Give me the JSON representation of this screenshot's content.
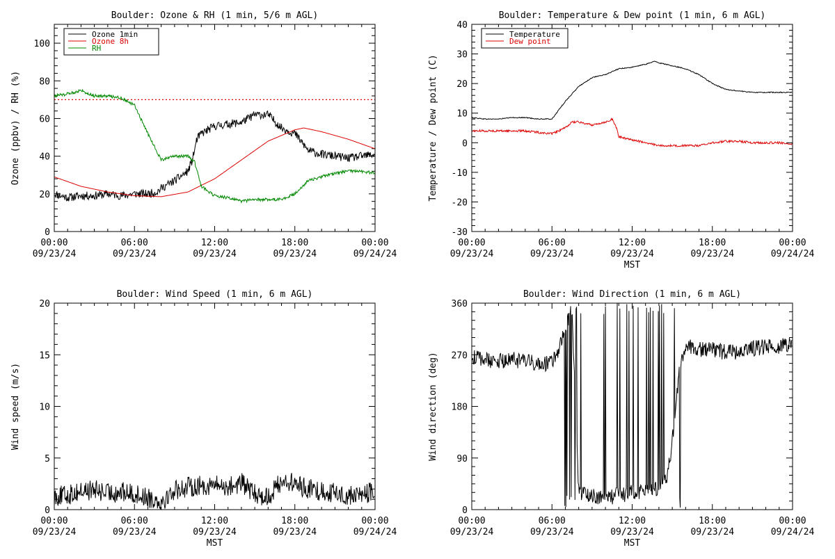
{
  "figure": {
    "background": "#ffffff"
  },
  "chart_data": [
    {
      "type": "line",
      "title": "Boulder: Ozone & RH (1 min, 5/6 m AGL)",
      "xlabel": "",
      "ylabel": "Ozone (ppbv) / RH (%)",
      "xlim": [
        "09/23/24 00:00",
        "09/24/24 00:00"
      ],
      "ylim": [
        0,
        110
      ],
      "x_ticks": [
        {
          "time": "00:00",
          "date": "09/23/24"
        },
        {
          "time": "06:00",
          "date": "09/23/24"
        },
        {
          "time": "12:00",
          "date": "09/23/24"
        },
        {
          "time": "18:00",
          "date": "09/23/24"
        },
        {
          "time": "00:00",
          "date": "09/24/24"
        }
      ],
      "y_ticks": [
        0,
        20,
        40,
        60,
        80,
        100
      ],
      "legend": {
        "position": "top-left",
        "entries": [
          "Ozone 1min",
          "Ozone 8h",
          "RH"
        ]
      },
      "reference_line": {
        "y": 70,
        "color": "#dd0000",
        "style": "dotted"
      },
      "series": [
        {
          "name": "Ozone 1min",
          "color": "#000000",
          "noise": 2.2,
          "x": [
            "00:00",
            "01:00",
            "02:00",
            "03:00",
            "04:00",
            "05:00",
            "06:00",
            "07:00",
            "07:40",
            "08:00",
            "09:00",
            "10:00",
            "10:20",
            "10:40",
            "11:00",
            "12:00",
            "13:00",
            "14:00",
            "15:00",
            "16:00",
            "17:00",
            "18:00",
            "19:00",
            "20:00",
            "21:00",
            "22:00",
            "23:00",
            "23:59"
          ],
          "y": [
            20,
            18,
            19,
            19,
            20,
            19,
            20,
            20,
            21,
            23,
            27,
            32,
            38,
            49,
            52,
            56,
            57,
            58,
            62,
            62,
            55,
            52,
            43,
            41,
            40,
            39,
            40,
            41
          ]
        },
        {
          "name": "Ozone 8h",
          "color": "#dd0000",
          "noise": 0,
          "x": [
            "00:00",
            "02:00",
            "04:00",
            "06:00",
            "08:00",
            "10:00",
            "12:00",
            "14:00",
            "16:00",
            "18:00",
            "18:40",
            "20:00",
            "22:00",
            "23:59"
          ],
          "y": [
            29,
            24,
            21,
            19,
            18.5,
            21,
            28,
            38,
            48,
            54,
            55,
            53,
            49,
            44
          ]
        },
        {
          "name": "RH",
          "color": "#008800",
          "noise": 0.8,
          "x": [
            "00:00",
            "01:00",
            "02:00",
            "03:00",
            "04:00",
            "05:00",
            "06:00",
            "07:00",
            "08:00",
            "09:00",
            "10:00",
            "10:30",
            "11:00",
            "12:00",
            "13:00",
            "14:00",
            "15:00",
            "16:00",
            "17:00",
            "18:00",
            "19:00",
            "20:00",
            "21:00",
            "22:00",
            "23:00",
            "23:59"
          ],
          "y": [
            72,
            73,
            75,
            72,
            72,
            71,
            67,
            52,
            38,
            40,
            40,
            37,
            24,
            19,
            18,
            16,
            17,
            17,
            17,
            20,
            27,
            29,
            31,
            32,
            32,
            31
          ]
        }
      ]
    },
    {
      "type": "line",
      "title": "Boulder: Temperature & Dew point (1 min, 6 m AGL)",
      "xlabel": "MST",
      "ylabel": "Temperature / Dew point (C)",
      "xlim": [
        "09/23/24 00:00",
        "09/24/24 00:00"
      ],
      "ylim": [
        -30,
        40
      ],
      "x_ticks": [
        {
          "time": "00:00",
          "date": "09/23/24"
        },
        {
          "time": "06:00",
          "date": "09/23/24"
        },
        {
          "time": "12:00",
          "date": "09/23/24"
        },
        {
          "time": "18:00",
          "date": "09/23/24"
        },
        {
          "time": "00:00",
          "date": "09/24/24"
        }
      ],
      "y_ticks": [
        -30,
        -20,
        -10,
        0,
        10,
        20,
        30,
        40
      ],
      "legend": {
        "position": "top-left",
        "entries": [
          "Temperature",
          "Dew point"
        ]
      },
      "series": [
        {
          "name": "Temperature",
          "color": "#000000",
          "noise": 0.15,
          "x": [
            "00:00",
            "01:00",
            "02:00",
            "03:00",
            "04:00",
            "05:00",
            "06:00",
            "06:30",
            "07:00",
            "08:00",
            "09:00",
            "10:00",
            "11:00",
            "12:00",
            "13:00",
            "13:40",
            "14:00",
            "15:00",
            "16:00",
            "17:00",
            "18:00",
            "19:00",
            "20:00",
            "21:00",
            "22:00",
            "23:00",
            "23:59"
          ],
          "y": [
            8.5,
            8,
            8,
            8.5,
            8.5,
            8,
            8,
            11,
            14,
            19,
            22,
            23,
            25,
            25.5,
            26.5,
            27.5,
            27,
            26,
            25,
            23,
            20,
            18,
            17.5,
            17,
            17,
            17,
            17
          ]
        },
        {
          "name": "Dew point",
          "color": "#dd0000",
          "noise": 0.35,
          "x": [
            "00:00",
            "02:00",
            "04:00",
            "06:00",
            "06:30",
            "07:00",
            "07:30",
            "08:00",
            "09:00",
            "10:00",
            "10:30",
            "10:50",
            "11:00",
            "12:00",
            "13:00",
            "14:00",
            "15:00",
            "16:00",
            "17:00",
            "18:00",
            "19:00",
            "20:00",
            "21:00",
            "22:00",
            "23:00",
            "23:59"
          ],
          "y": [
            4,
            4,
            4,
            3,
            4,
            5,
            7,
            7,
            6,
            7,
            8,
            5,
            2,
            1,
            0,
            -1,
            -1,
            -1,
            -1,
            0,
            0.5,
            0.5,
            0,
            0,
            0,
            -0.5
          ]
        }
      ]
    },
    {
      "type": "line",
      "title": "Boulder: Wind Speed (1 min, 6 m AGL)",
      "xlabel": "MST",
      "ylabel": "Wind speed (m/s)",
      "xlim": [
        "09/23/24 00:00",
        "09/24/24 00:00"
      ],
      "ylim": [
        0,
        20
      ],
      "x_ticks": [
        {
          "time": "00:00",
          "date": "09/23/24"
        },
        {
          "time": "06:00",
          "date": "09/23/24"
        },
        {
          "time": "12:00",
          "date": "09/23/24"
        },
        {
          "time": "18:00",
          "date": "09/23/24"
        },
        {
          "time": "00:00",
          "date": "09/24/24"
        }
      ],
      "y_ticks": [
        0,
        5,
        10,
        15,
        20
      ],
      "series": [
        {
          "name": "",
          "color": "#000000",
          "noise": 0.55,
          "x": [
            "00:00",
            "01:00",
            "02:00",
            "03:00",
            "04:00",
            "05:00",
            "06:00",
            "07:00",
            "08:00",
            "08:30",
            "09:00",
            "10:00",
            "11:00",
            "12:00",
            "13:00",
            "14:00",
            "15:00",
            "16:00",
            "17:00",
            "18:00",
            "19:00",
            "20:00",
            "21:00",
            "22:00",
            "23:00",
            "23:59"
          ],
          "y": [
            1.3,
            1.4,
            1.8,
            1.9,
            1.6,
            1.7,
            1.5,
            1.2,
            0.8,
            1.3,
            1.9,
            2.2,
            2.3,
            2.4,
            2.2,
            2.6,
            1.5,
            1.2,
            2.8,
            2.5,
            2.0,
            1.8,
            1.6,
            1.3,
            1.5,
            1.7
          ]
        }
      ]
    },
    {
      "type": "line",
      "title": "Boulder: Wind Direction (1 min, 6 m AGL)",
      "xlabel": "MST",
      "ylabel": "Wind direction (deg)",
      "xlim": [
        "09/23/24 00:00",
        "09/24/24 00:00"
      ],
      "ylim": [
        0,
        360
      ],
      "x_ticks": [
        {
          "time": "00:00",
          "date": "09/23/24"
        },
        {
          "time": "06:00",
          "date": "09/23/24"
        },
        {
          "time": "12:00",
          "date": "09/23/24"
        },
        {
          "time": "18:00",
          "date": "09/23/24"
        },
        {
          "time": "00:00",
          "date": "09/24/24"
        }
      ],
      "y_ticks": [
        0,
        90,
        180,
        270,
        360
      ],
      "series": [
        {
          "name": "",
          "color": "#000000",
          "noise": 14,
          "wrap": true,
          "x": [
            "00:00",
            "01:00",
            "02:00",
            "03:00",
            "04:00",
            "05:00",
            "06:00",
            "06:30",
            "07:00",
            "07:30",
            "08:00",
            "09:00",
            "10:00",
            "11:00",
            "12:00",
            "13:00",
            "14:00",
            "14:40",
            "15:00",
            "15:30",
            "16:00",
            "17:00",
            "18:00",
            "19:00",
            "20:00",
            "21:00",
            "22:00",
            "23:00",
            "23:59"
          ],
          "y": [
            265,
            262,
            258,
            262,
            258,
            255,
            255,
            280,
            320,
            350,
            30,
            25,
            20,
            25,
            30,
            30,
            40,
            60,
            120,
            240,
            285,
            280,
            278,
            275,
            275,
            280,
            285,
            285,
            290
          ]
        }
      ]
    }
  ]
}
